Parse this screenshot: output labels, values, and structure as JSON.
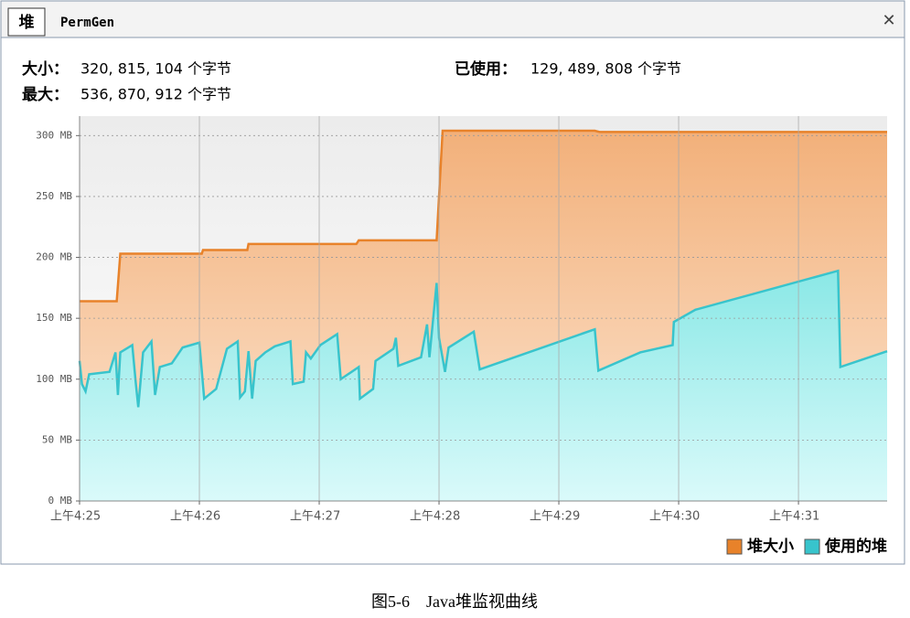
{
  "tabs": [
    "堆",
    "PermGen"
  ],
  "info": [
    {
      "label": "大小：",
      "value": "320, 815, 104 个字节"
    },
    {
      "label": "已使用：",
      "value": "129, 489, 808 个字节"
    },
    {
      "label": "最大：",
      "value": "536, 870, 912 个字节"
    }
  ],
  "caption": "图5-6　Java堆监视曲线",
  "chart_data": {
    "type": "area",
    "xlim": [
      265,
      271.74
    ],
    "xticks": [
      {
        "value": 265,
        "label": "上午4:25"
      },
      {
        "value": 266,
        "label": "上午4:26"
      },
      {
        "value": 267,
        "label": "上午4:27"
      },
      {
        "value": 268,
        "label": "上午4:28"
      },
      {
        "value": 269,
        "label": "上午4:29"
      },
      {
        "value": 270,
        "label": "上午4:30"
      },
      {
        "value": 271,
        "label": "上午4:31"
      }
    ],
    "ylim": [
      0,
      316
    ],
    "yticks": [
      {
        "value": 0,
        "label": "0 MB"
      },
      {
        "value": 50,
        "label": "50 MB"
      },
      {
        "value": 100,
        "label": "100 MB"
      },
      {
        "value": 150,
        "label": "150 MB"
      },
      {
        "value": 200,
        "label": "200 MB"
      },
      {
        "value": 250,
        "label": "250 MB"
      },
      {
        "value": 300,
        "label": "300 MB"
      }
    ],
    "grid": true,
    "legend": "lower right",
    "series": [
      {
        "name": "堆大小",
        "color": "#e8822a",
        "x": [
          265.0,
          265.31,
          265.34,
          266.02,
          266.03,
          266.4,
          266.41,
          267.31,
          267.33,
          267.98,
          268.03,
          269.3,
          269.34,
          271.74
        ],
        "values": [
          164,
          164,
          203,
          203,
          206,
          206,
          211,
          211,
          214,
          214,
          304,
          304,
          303,
          303
        ]
      },
      {
        "name": "使用的堆",
        "color": "#38c4cc",
        "x": [
          265.0,
          265.02,
          265.05,
          265.08,
          265.25,
          265.3,
          265.32,
          265.34,
          265.44,
          265.47,
          265.49,
          265.53,
          265.6,
          265.63,
          265.67,
          265.77,
          265.86,
          266.0,
          266.04,
          266.14,
          266.23,
          266.32,
          266.34,
          266.38,
          266.41,
          266.44,
          266.47,
          266.55,
          266.63,
          266.76,
          266.78,
          266.87,
          266.89,
          266.93,
          267.01,
          267.15,
          267.18,
          267.33,
          267.34,
          267.45,
          267.47,
          267.62,
          267.64,
          267.66,
          267.85,
          267.9,
          267.92,
          267.98,
          268.0,
          268.05,
          268.08,
          268.29,
          268.34,
          269.3,
          269.33,
          269.68,
          269.95,
          269.96,
          270.14,
          271.33,
          271.35,
          271.74
        ],
        "values": [
          115,
          96,
          90,
          104,
          106,
          122,
          87,
          122,
          128,
          96,
          77,
          122,
          131,
          87,
          110,
          113,
          126,
          130,
          84,
          92,
          125,
          131,
          85,
          90,
          123,
          84,
          115,
          122,
          127,
          131,
          96,
          98,
          122,
          117,
          128,
          137,
          100,
          110,
          84,
          92,
          115,
          125,
          134,
          111,
          118,
          145,
          118,
          179,
          134,
          106,
          126,
          139,
          108,
          141,
          107,
          122,
          128,
          147,
          157,
          189,
          110,
          123
        ]
      }
    ]
  }
}
